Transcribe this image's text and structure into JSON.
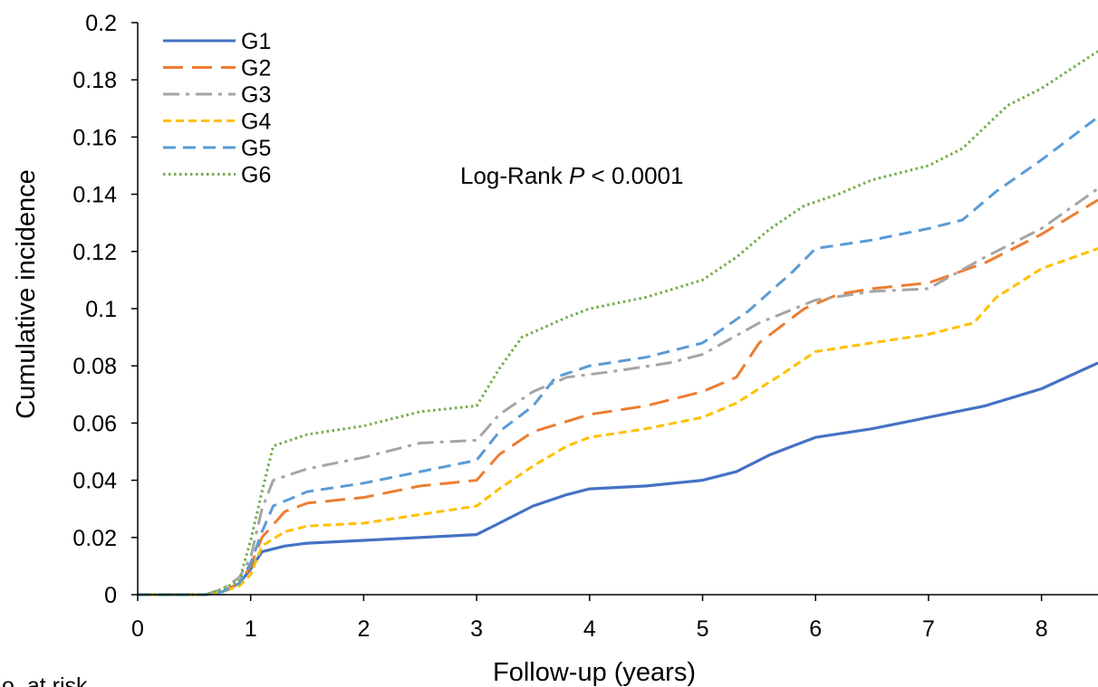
{
  "chart_data": {
    "type": "line",
    "xlabel": "Follow-up (years)",
    "ylabel": "Cumulative incidence",
    "xlim": [
      0,
      8.5
    ],
    "ylim": [
      0,
      0.2
    ],
    "x_ticks": [
      0,
      1,
      2,
      3,
      4,
      5,
      6,
      7,
      8
    ],
    "y_ticks": [
      0,
      0.02,
      0.04,
      0.06,
      0.08,
      0.1,
      0.12,
      0.14,
      0.16,
      0.18,
      0.2
    ],
    "y_tick_labels": [
      "0",
      "0.02",
      "0.04",
      "0.06",
      "0.08",
      "0.1",
      "0.12",
      "0.14",
      "0.16",
      "0.18",
      "0.2"
    ],
    "annotation": {
      "prefix": "Log-Rank ",
      "italic": "P",
      "suffix": " < 0.0001"
    },
    "cut_text": "No. at risk",
    "legend_position": "top-left",
    "series": [
      {
        "name": "G1",
        "color": "#4472C4",
        "dash": "solid",
        "x": [
          0,
          0.6,
          0.75,
          0.9,
          1.0,
          1.1,
          1.3,
          1.5,
          2.0,
          2.5,
          3.0,
          3.2,
          3.5,
          3.8,
          4.0,
          4.5,
          5.0,
          5.3,
          5.6,
          6.0,
          6.5,
          7.0,
          7.5,
          8.0,
          8.5
        ],
        "y": [
          0,
          0,
          0.001,
          0.004,
          0.009,
          0.015,
          0.017,
          0.018,
          0.019,
          0.02,
          0.021,
          0.025,
          0.031,
          0.035,
          0.037,
          0.038,
          0.04,
          0.043,
          0.049,
          0.055,
          0.058,
          0.062,
          0.066,
          0.072,
          0.081
        ]
      },
      {
        "name": "G2",
        "color": "#ED7D31",
        "dash": "longdash",
        "x": [
          0,
          0.6,
          0.75,
          0.9,
          1.0,
          1.1,
          1.3,
          1.5,
          2.0,
          2.5,
          3.0,
          3.2,
          3.5,
          4.0,
          4.5,
          5.0,
          5.3,
          5.5,
          5.9,
          6.2,
          6.5,
          7.0,
          7.5,
          8.0,
          8.5
        ],
        "y": [
          0,
          0,
          0.001,
          0.004,
          0.01,
          0.02,
          0.029,
          0.032,
          0.034,
          0.038,
          0.04,
          0.049,
          0.057,
          0.063,
          0.066,
          0.071,
          0.076,
          0.088,
          0.1,
          0.105,
          0.107,
          0.109,
          0.116,
          0.126,
          0.138
        ]
      },
      {
        "name": "G3",
        "color": "#A5A5A5",
        "dash": "dashdot",
        "x": [
          0,
          0.6,
          0.75,
          0.9,
          1.0,
          1.1,
          1.2,
          1.5,
          2.0,
          2.5,
          3.0,
          3.2,
          3.5,
          3.8,
          4.2,
          4.7,
          5.0,
          5.5,
          6.0,
          6.5,
          7.0,
          7.5,
          8.0,
          8.5
        ],
        "y": [
          0,
          0,
          0.002,
          0.006,
          0.013,
          0.03,
          0.04,
          0.044,
          0.048,
          0.053,
          0.054,
          0.063,
          0.071,
          0.076,
          0.078,
          0.081,
          0.084,
          0.095,
          0.103,
          0.106,
          0.107,
          0.118,
          0.128,
          0.142
        ]
      },
      {
        "name": "G4",
        "color": "#FFC000",
        "dash": "shortdash",
        "x": [
          0,
          0.6,
          0.75,
          0.9,
          1.0,
          1.1,
          1.3,
          1.5,
          2.0,
          2.5,
          3.0,
          3.2,
          3.5,
          3.8,
          4.0,
          4.5,
          5.0,
          5.3,
          5.7,
          6.0,
          6.5,
          7.0,
          7.4,
          7.6,
          8.0,
          8.5
        ],
        "y": [
          0,
          0,
          0.001,
          0.003,
          0.007,
          0.017,
          0.022,
          0.024,
          0.025,
          0.028,
          0.031,
          0.037,
          0.045,
          0.052,
          0.055,
          0.058,
          0.062,
          0.067,
          0.077,
          0.085,
          0.088,
          0.091,
          0.095,
          0.104,
          0.114,
          0.121
        ]
      },
      {
        "name": "G5",
        "color": "#5B9BD5",
        "dash": "dash",
        "x": [
          0,
          0.6,
          0.75,
          0.9,
          1.0,
          1.1,
          1.2,
          1.5,
          2.0,
          2.5,
          3.0,
          3.2,
          3.5,
          3.7,
          4.0,
          4.5,
          5.0,
          5.4,
          5.8,
          6.0,
          6.5,
          7.0,
          7.3,
          7.6,
          8.0,
          8.5
        ],
        "y": [
          0,
          0,
          0.001,
          0.004,
          0.011,
          0.022,
          0.031,
          0.036,
          0.039,
          0.043,
          0.047,
          0.057,
          0.066,
          0.076,
          0.08,
          0.083,
          0.088,
          0.099,
          0.113,
          0.121,
          0.124,
          0.128,
          0.131,
          0.141,
          0.152,
          0.167
        ]
      },
      {
        "name": "G6",
        "color": "#70AD47",
        "dash": "dot",
        "x": [
          0,
          0.6,
          0.75,
          0.9,
          1.0,
          1.1,
          1.2,
          1.5,
          2.0,
          2.5,
          3.0,
          3.2,
          3.4,
          3.8,
          4.0,
          4.5,
          5.0,
          5.3,
          5.6,
          5.9,
          6.2,
          6.5,
          7.0,
          7.3,
          7.7,
          8.0,
          8.5
        ],
        "y": [
          0,
          0,
          0.002,
          0.005,
          0.019,
          0.036,
          0.052,
          0.056,
          0.059,
          0.064,
          0.066,
          0.079,
          0.09,
          0.097,
          0.1,
          0.104,
          0.11,
          0.118,
          0.128,
          0.136,
          0.14,
          0.145,
          0.15,
          0.156,
          0.171,
          0.177,
          0.19
        ]
      }
    ]
  }
}
